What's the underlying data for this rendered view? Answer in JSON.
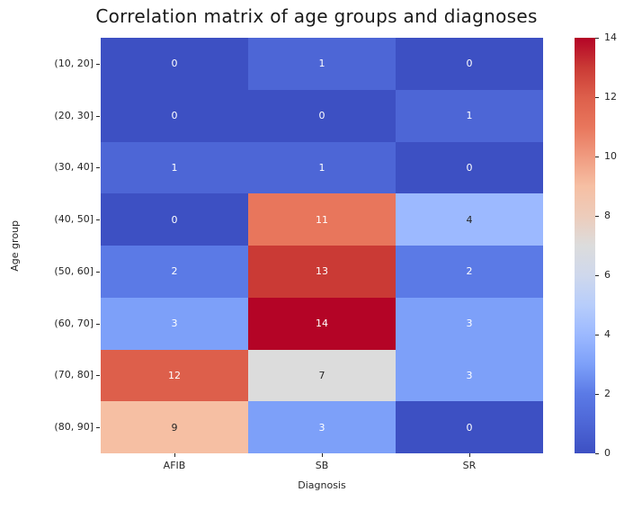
{
  "title": "Correlation matrix of age groups and diagnoses",
  "chart_data": {
    "type": "heatmap",
    "title": "Correlation matrix of age groups and diagnoses",
    "xlabel": "Diagnosis",
    "ylabel": "Age group",
    "x_categories": [
      "AFIB",
      "SB",
      "SR"
    ],
    "y_categories": [
      "(10, 20]",
      "(20, 30]",
      "(30, 40]",
      "(40, 50]",
      "(50, 60]",
      "(60, 70]",
      "(70, 80]",
      "(80, 90]"
    ],
    "values": [
      [
        0,
        1,
        0
      ],
      [
        0,
        0,
        1
      ],
      [
        1,
        1,
        0
      ],
      [
        0,
        11,
        4
      ],
      [
        2,
        13,
        2
      ],
      [
        3,
        14,
        3
      ],
      [
        12,
        7,
        3
      ],
      [
        9,
        3,
        0
      ]
    ],
    "annotations_shown": true,
    "colormap": "coolwarm",
    "vmin": 0,
    "vmax": 14,
    "colorbar_ticks": [
      0,
      2,
      4,
      6,
      8,
      10,
      12,
      14
    ],
    "legend_position": "right",
    "grid": false,
    "value_colors": {
      "0": "#3d50c3",
      "1": "#4d66d6",
      "2": "#5b7ae6",
      "3": "#7da0f9",
      "4": "#9cb9ff",
      "7": "#dcdcdc",
      "9": "#f6bfa3",
      "11": "#e8765c",
      "12": "#dd5f4b",
      "13": "#ca3a35",
      "14": "#b40426"
    },
    "dark_text_values": [
      4,
      7,
      9
    ],
    "annotation_dark_color": "#262626",
    "annotation_light_color": "#ffffff",
    "colorbar_gradient": [
      {
        "pos": 0,
        "color": "#3d50c3"
      },
      {
        "pos": 7.1,
        "color": "#4d66d6"
      },
      {
        "pos": 14.3,
        "color": "#5b7ae6"
      },
      {
        "pos": 21.4,
        "color": "#7da0f9"
      },
      {
        "pos": 28.6,
        "color": "#9cb9ff"
      },
      {
        "pos": 35.7,
        "color": "#b7cdfb"
      },
      {
        "pos": 42.9,
        "color": "#cfd8ec"
      },
      {
        "pos": 50,
        "color": "#dcdcdc"
      },
      {
        "pos": 57.1,
        "color": "#edccbb"
      },
      {
        "pos": 64.3,
        "color": "#f6bfa3"
      },
      {
        "pos": 71.4,
        "color": "#f09b80"
      },
      {
        "pos": 78.6,
        "color": "#e8765c"
      },
      {
        "pos": 85.7,
        "color": "#dd5f4b"
      },
      {
        "pos": 92.9,
        "color": "#ca3a35"
      },
      {
        "pos": 100,
        "color": "#b40426"
      }
    ]
  }
}
